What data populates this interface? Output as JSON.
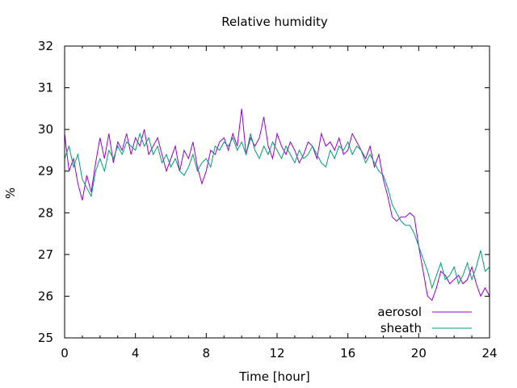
{
  "chart_data": {
    "type": "line",
    "title": "Relative humidity",
    "xlabel": "Time [hour]",
    "ylabel": "%",
    "xlim": [
      0,
      24
    ],
    "ylim": [
      25,
      32
    ],
    "x_ticks": [
      0,
      4,
      8,
      12,
      16,
      20,
      24
    ],
    "y_ticks": [
      25,
      26,
      27,
      28,
      29,
      30,
      31,
      32
    ],
    "grid": false,
    "legend_position": "bottom-right",
    "colors": {
      "aerosol": "#9400d3",
      "sheath": "#009e73"
    },
    "series": [
      {
        "name": "aerosol",
        "x": [
          0,
          0.25,
          0.5,
          0.75,
          1,
          1.25,
          1.5,
          1.75,
          2,
          2.25,
          2.5,
          2.75,
          3,
          3.25,
          3.5,
          3.75,
          4,
          4.25,
          4.5,
          4.75,
          5,
          5.25,
          5.5,
          5.75,
          6,
          6.25,
          6.5,
          6.75,
          7,
          7.25,
          7.5,
          7.75,
          8,
          8.25,
          8.5,
          8.75,
          9,
          9.25,
          9.5,
          9.75,
          10,
          10.25,
          10.5,
          10.75,
          11,
          11.25,
          11.5,
          11.75,
          12,
          12.25,
          12.5,
          12.75,
          13,
          13.25,
          13.5,
          13.75,
          14,
          14.25,
          14.5,
          14.75,
          15,
          15.25,
          15.5,
          15.75,
          16,
          16.25,
          16.5,
          16.75,
          17,
          17.25,
          17.5,
          17.75,
          18,
          18.25,
          18.5,
          18.75,
          19,
          19.25,
          19.5,
          19.75,
          20,
          20.25,
          20.5,
          20.75,
          21,
          21.25,
          21.5,
          21.75,
          22,
          22.25,
          22.5,
          22.75,
          23,
          23.25,
          23.5,
          23.75,
          24
        ],
        "y": [
          29.9,
          29.0,
          29.3,
          28.7,
          28.3,
          28.9,
          28.5,
          29.2,
          29.8,
          29.3,
          29.9,
          29.2,
          29.7,
          29.5,
          29.9,
          29.4,
          29.8,
          29.6,
          30.0,
          29.4,
          29.6,
          29.8,
          29.4,
          29.0,
          29.3,
          29.6,
          29.0,
          29.5,
          29.3,
          29.7,
          29.1,
          28.7,
          29.0,
          29.5,
          29.4,
          29.7,
          29.8,
          29.5,
          29.9,
          29.6,
          30.5,
          29.4,
          29.8,
          29.6,
          29.8,
          30.3,
          29.6,
          29.3,
          29.9,
          29.6,
          29.4,
          29.7,
          29.5,
          29.2,
          29.4,
          29.7,
          29.6,
          29.3,
          29.9,
          29.6,
          29.7,
          29.5,
          29.8,
          29.4,
          29.5,
          29.9,
          29.7,
          29.5,
          29.3,
          29.6,
          29.1,
          29.4,
          28.8,
          28.4,
          27.9,
          27.8,
          27.9,
          27.9,
          28.0,
          27.9,
          27.2,
          26.6,
          26.0,
          25.9,
          26.2,
          26.6,
          26.5,
          26.3,
          26.4,
          26.5,
          26.3,
          26.4,
          26.7,
          26.3,
          26.0,
          26.2,
          26.0
        ]
      },
      {
        "name": "sheath",
        "x": [
          0,
          0.25,
          0.5,
          0.75,
          1,
          1.25,
          1.5,
          1.75,
          2,
          2.25,
          2.5,
          2.75,
          3,
          3.25,
          3.5,
          3.75,
          4,
          4.25,
          4.5,
          4.75,
          5,
          5.25,
          5.5,
          5.75,
          6,
          6.25,
          6.5,
          6.75,
          7,
          7.25,
          7.5,
          7.75,
          8,
          8.25,
          8.5,
          8.75,
          9,
          9.25,
          9.5,
          9.75,
          10,
          10.25,
          10.5,
          10.75,
          11,
          11.25,
          11.5,
          11.75,
          12,
          12.25,
          12.5,
          12.75,
          13,
          13.25,
          13.5,
          13.75,
          14,
          14.25,
          14.5,
          14.75,
          15,
          15.25,
          15.5,
          15.75,
          16,
          16.25,
          16.5,
          16.75,
          17,
          17.25,
          17.5,
          17.75,
          18,
          18.25,
          18.5,
          18.75,
          19,
          19.25,
          19.5,
          19.75,
          20,
          20.25,
          20.5,
          20.75,
          21,
          21.25,
          21.5,
          21.75,
          22,
          22.25,
          22.5,
          22.75,
          23,
          23.25,
          23.5,
          23.75,
          24
        ],
        "y": [
          29.3,
          29.6,
          29.1,
          29.4,
          28.8,
          28.6,
          28.4,
          29.0,
          29.3,
          29.0,
          29.5,
          29.3,
          29.6,
          29.4,
          29.7,
          29.6,
          29.5,
          29.9,
          29.6,
          29.8,
          29.4,
          29.6,
          29.2,
          29.4,
          29.1,
          29.3,
          29.0,
          28.9,
          29.1,
          29.4,
          29.0,
          29.2,
          29.3,
          29.1,
          29.6,
          29.5,
          29.7,
          29.6,
          29.8,
          29.5,
          29.7,
          29.4,
          29.9,
          29.5,
          29.3,
          29.6,
          29.4,
          29.7,
          29.5,
          29.3,
          29.6,
          29.4,
          29.2,
          29.5,
          29.3,
          29.4,
          29.6,
          29.4,
          29.2,
          29.1,
          29.5,
          29.3,
          29.6,
          29.5,
          29.7,
          29.4,
          29.6,
          29.5,
          29.2,
          29.4,
          29.2,
          29.0,
          28.9,
          28.6,
          28.2,
          28.0,
          27.8,
          27.7,
          27.7,
          27.5,
          27.2,
          26.9,
          26.6,
          26.2,
          26.5,
          26.8,
          26.4,
          26.5,
          26.7,
          26.3,
          26.5,
          26.8,
          26.4,
          26.7,
          27.1,
          26.6,
          26.7
        ]
      }
    ]
  }
}
